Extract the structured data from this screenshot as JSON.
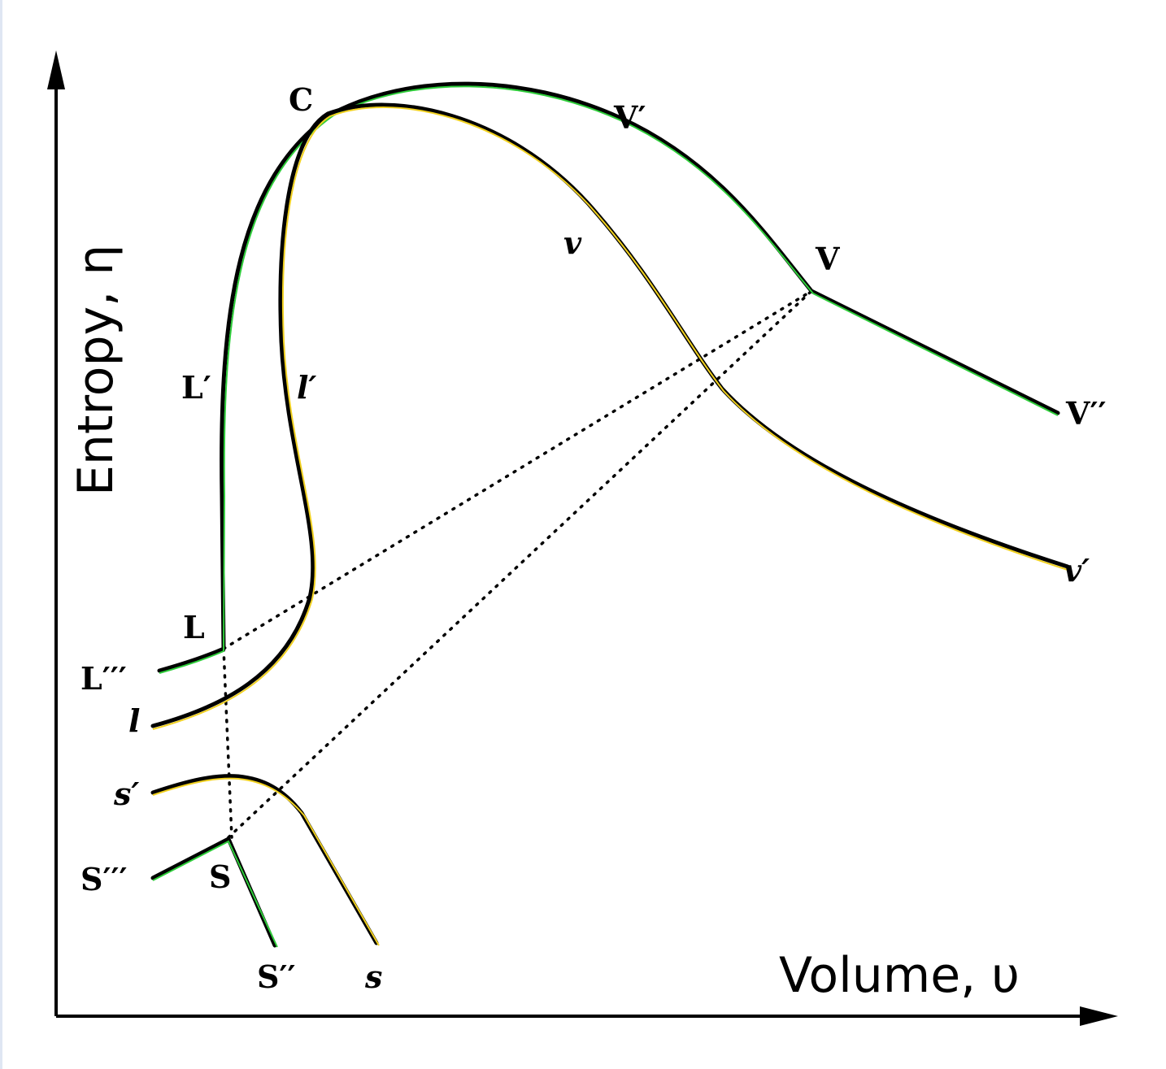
{
  "axes": {
    "x_title": "Volume, υ",
    "y_title": "Entropy, η"
  },
  "points": {
    "C": "C",
    "V_prime": "V′",
    "V": "V",
    "V_double": "V′′",
    "v": "v",
    "v_prime": "v′",
    "L_prime": "L′",
    "l_prime": "l′",
    "L": "L",
    "L_triple": "L′′′",
    "l": "l",
    "s_prime": "s′",
    "S_triple": "S′′′",
    "S": "S",
    "S_double": "S′′",
    "s": "s"
  },
  "colors": {
    "vapor_highlight": "#2ecc3a",
    "liquid_highlight": "#f0d020",
    "ink": "#000000"
  }
}
